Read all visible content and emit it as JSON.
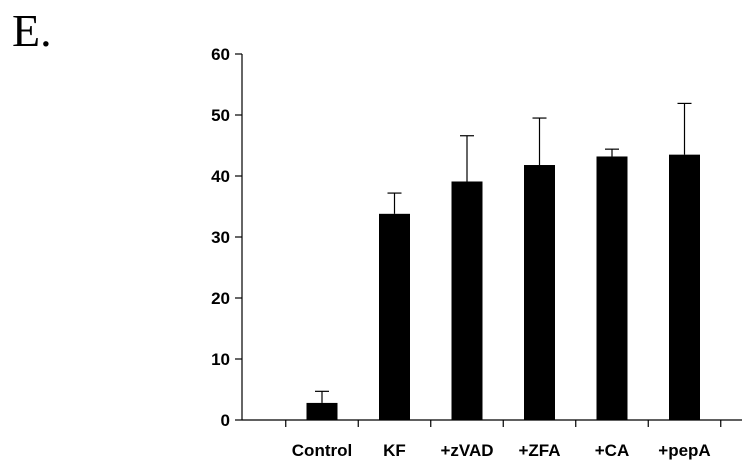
{
  "panel_label": "E.",
  "chart_data": {
    "type": "bar",
    "categories": [
      "Control",
      "KF",
      "+zVAD",
      "+ZFA",
      "+CA",
      "+pepA"
    ],
    "values": [
      2.8,
      33.8,
      39.1,
      41.8,
      43.2,
      43.5
    ],
    "errors": [
      1.9,
      3.4,
      7.5,
      7.7,
      1.2,
      8.4
    ],
    "title": "",
    "xlabel": "",
    "ylabel": "",
    "ylim": [
      0,
      60
    ],
    "yticks": [
      0,
      10,
      20,
      30,
      40,
      50,
      60
    ],
    "grid": false,
    "bar_color": "#000000"
  }
}
